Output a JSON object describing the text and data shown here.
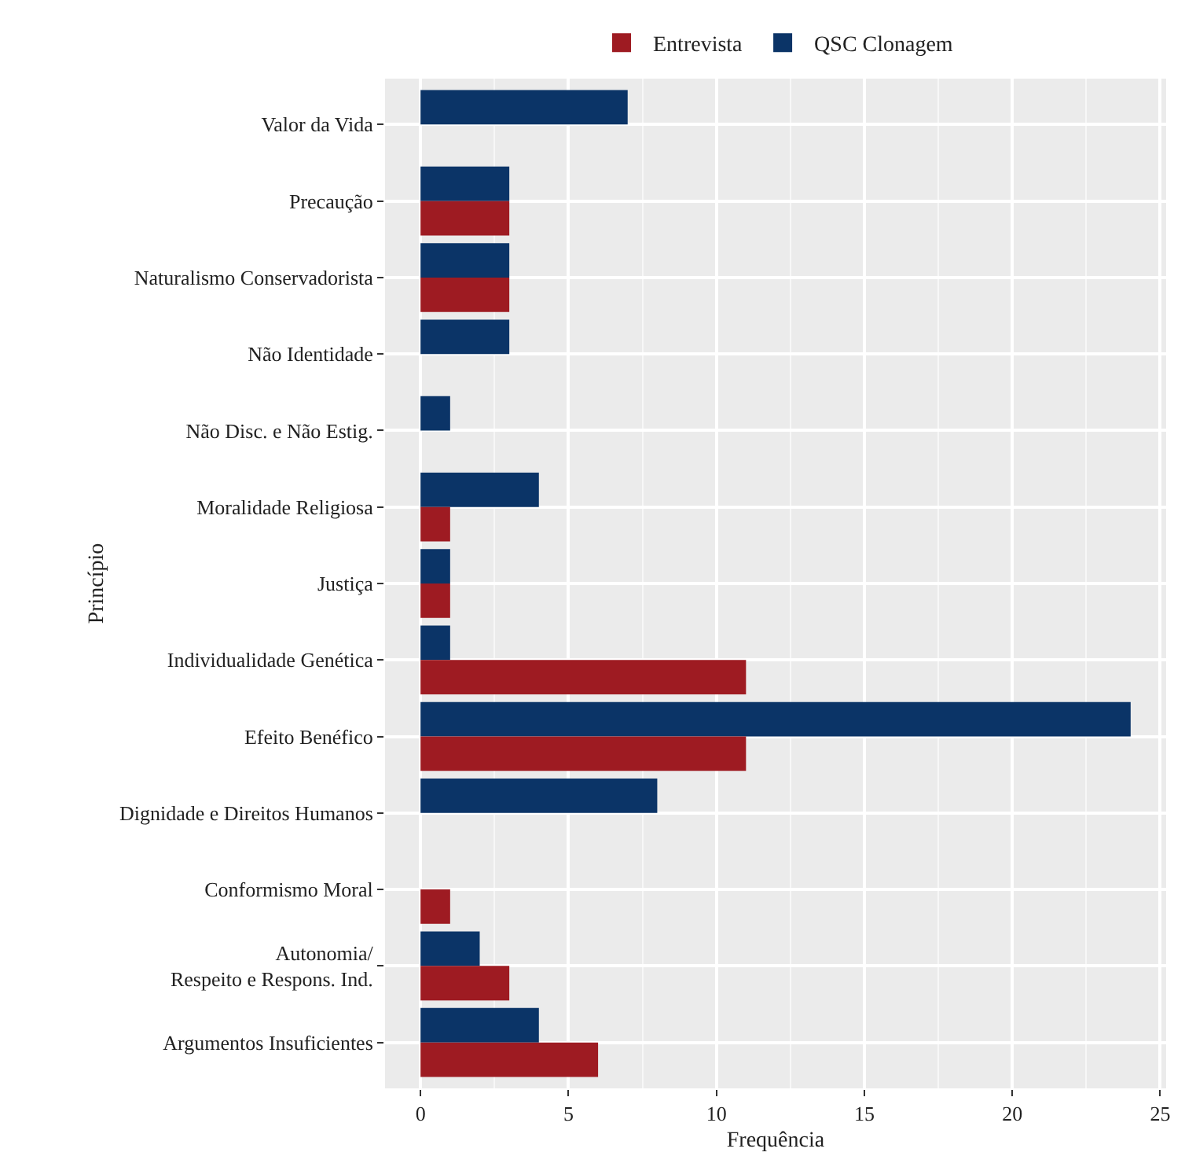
{
  "chart_data": {
    "type": "bar",
    "orientation": "horizontal",
    "xlabel": "Frequência",
    "ylabel": "Princípio",
    "categories": [
      "Valor da Vida",
      "Precaução",
      "Naturalismo Conservadorista",
      "Não Identidade",
      "Não Disc. e Não Estig.",
      "Moralidade Religiosa",
      "Justiça",
      "Individualidade Genética",
      "Efeito Benéfico",
      "Dignidade e Direitos Humanos",
      "Conformismo Moral",
      "Autonomia/\nRespeito e Respons. Ind.",
      "Argumentos Insuficientes"
    ],
    "series": [
      {
        "name": "Entrevista",
        "color": "#9e1b22",
        "values": [
          null,
          3,
          3,
          null,
          null,
          1,
          1,
          11,
          11,
          null,
          1,
          3,
          6
        ]
      },
      {
        "name": "QSC Clonagem",
        "color": "#0b3467",
        "values": [
          7,
          3,
          3,
          3,
          1,
          4,
          1,
          1,
          24,
          8,
          null,
          2,
          4
        ]
      }
    ],
    "xlim": [
      -1.2,
      25.2
    ],
    "xticks": [
      0,
      5,
      10,
      15,
      20,
      25
    ],
    "grid": true,
    "legend": "top"
  }
}
